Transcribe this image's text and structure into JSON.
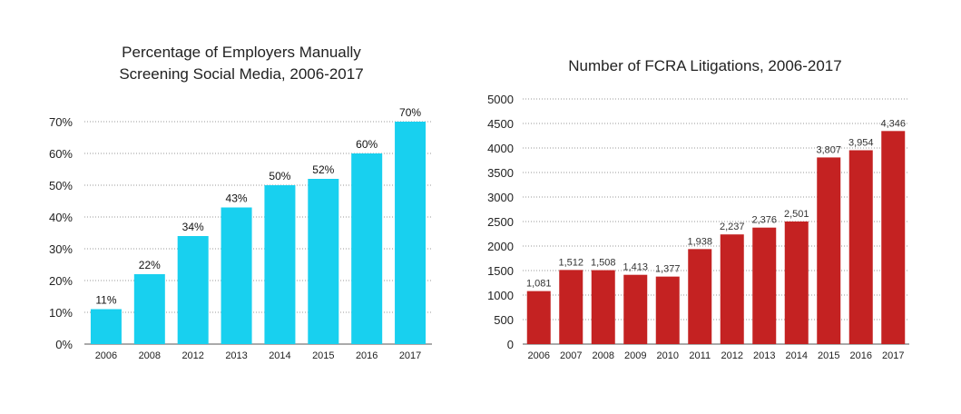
{
  "chart_data": [
    {
      "type": "bar",
      "title_lines": [
        "Percentage of Employers Manually",
        "Screening Social Media, 2006-2017"
      ],
      "categories": [
        "2006",
        "2008",
        "2012",
        "2013",
        "2014",
        "2015",
        "2016",
        "2017"
      ],
      "values": [
        11,
        22,
        34,
        43,
        50,
        52,
        60,
        70
      ],
      "value_labels": [
        "11%",
        "22%",
        "34%",
        "43%",
        "50%",
        "52%",
        "60%",
        "70%"
      ],
      "ylim": [
        0,
        70
      ],
      "yticks": [
        0,
        10,
        20,
        30,
        40,
        50,
        60,
        70
      ],
      "ytick_labels": [
        "0%",
        "10%",
        "20%",
        "30%",
        "40%",
        "50%",
        "60%",
        "70%"
      ],
      "xlabel": "",
      "ylabel": "",
      "grid": true,
      "bar_color": "#18d0ef"
    },
    {
      "type": "bar",
      "title_lines": [
        "Number of FCRA Litigations, 2006-2017"
      ],
      "categories": [
        "2006",
        "2007",
        "2008",
        "2009",
        "2010",
        "2011",
        "2012",
        "2013",
        "2014",
        "2015",
        "2016",
        "2017"
      ],
      "values": [
        1081,
        1512,
        1508,
        1413,
        1377,
        1938,
        2237,
        2376,
        2501,
        3807,
        3954,
        4346
      ],
      "value_labels": [
        "1,081",
        "1,512",
        "1,508",
        "1,413",
        "1,377",
        "1,938",
        "2,237",
        "2,376",
        "2,501",
        "3,807",
        "3,954",
        "4,346"
      ],
      "ylim": [
        0,
        5000
      ],
      "yticks": [
        0,
        500,
        1000,
        1500,
        2000,
        2500,
        3000,
        3500,
        4000,
        4500,
        5000
      ],
      "ytick_labels": [
        "0",
        "500",
        "1000",
        "1500",
        "2000",
        "2500",
        "3000",
        "3500",
        "4000",
        "4500",
        "5000"
      ],
      "xlabel": "",
      "ylabel": "",
      "grid": true,
      "bar_color": "#c42222"
    }
  ]
}
